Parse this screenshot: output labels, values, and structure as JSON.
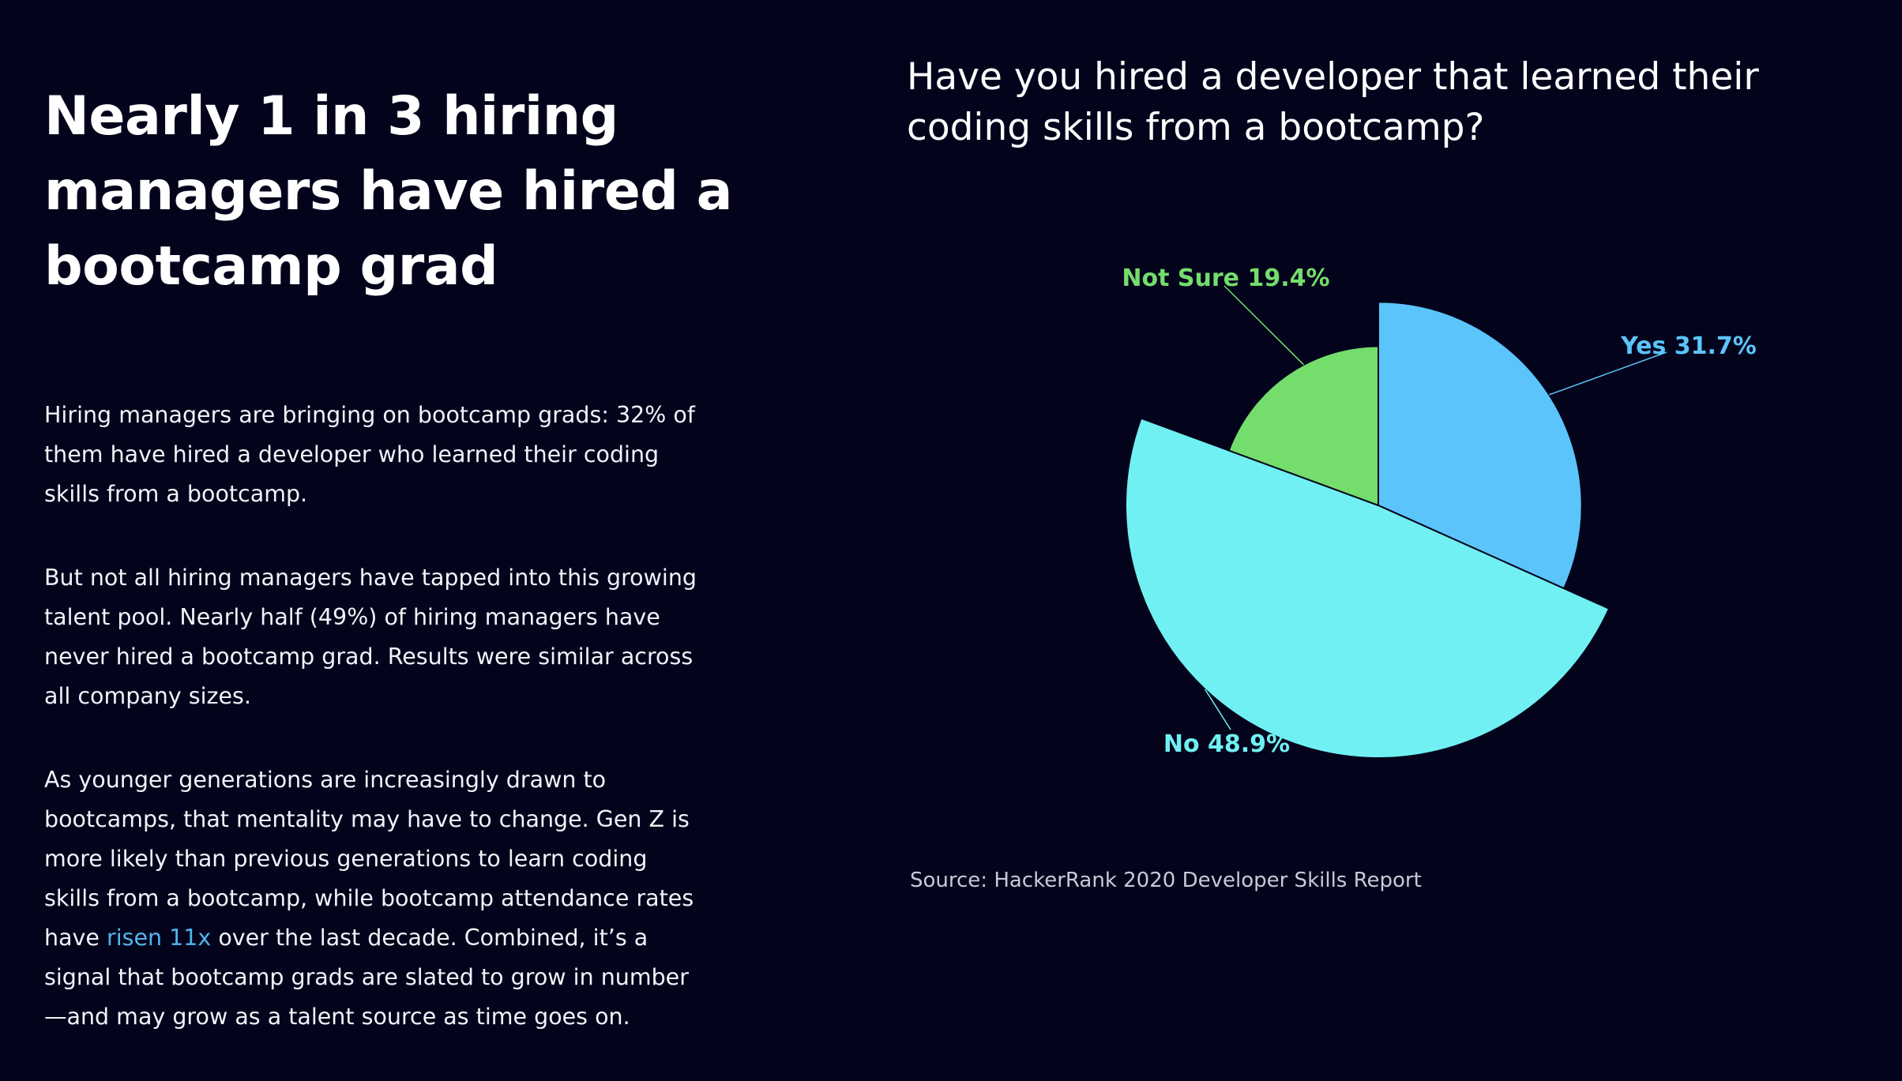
{
  "headline": "Nearly 1 in 3 hiring managers have hired a bootcamp grad",
  "paragraphs": {
    "p1": "Hiring managers are bringing on bootcamp grads: 32% of them have hired a developer who learned their coding skills from a bootcamp.",
    "p2": "But not all hiring managers have tapped into this growing talent pool. Nearly half (49%) of hiring managers have never hired a bootcamp grad. Results were similar across all company sizes.",
    "p3_before": "As younger generations are increasingly drawn to bootcamps, that mentality may have to change. Gen Z is more likely than previous generations to learn coding skills from a bootcamp, while bootcamp attendance rates have ",
    "p3_link": "risen 11x",
    "p3_after": " over the last decade. Combined, it’s a signal that bootcamp grads are slated to grow in number—and may grow as a talent source as time goes on."
  },
  "colors": {
    "background": "#03041c",
    "link": "#4fb6ea"
  },
  "chart_data": {
    "type": "pie",
    "title": "Have you hired a developer that learned their coding skills from a bootcamp?",
    "variable_radius": true,
    "slices": [
      {
        "name": "Yes",
        "value": 31.7,
        "label": "Yes 31.7%",
        "color": "#5bc4fb",
        "label_color": "#5bc4fb"
      },
      {
        "name": "No",
        "value": 48.9,
        "label": "No 48.9%",
        "color": "#70f0f2",
        "label_color": "#70f0f2"
      },
      {
        "name": "Not Sure",
        "value": 19.4,
        "label": "Not Sure 19.4%",
        "color": "#74dd6c",
        "label_color": "#74dd6c"
      }
    ],
    "source": "Source: HackerRank 2020 Developer Skills Report"
  }
}
